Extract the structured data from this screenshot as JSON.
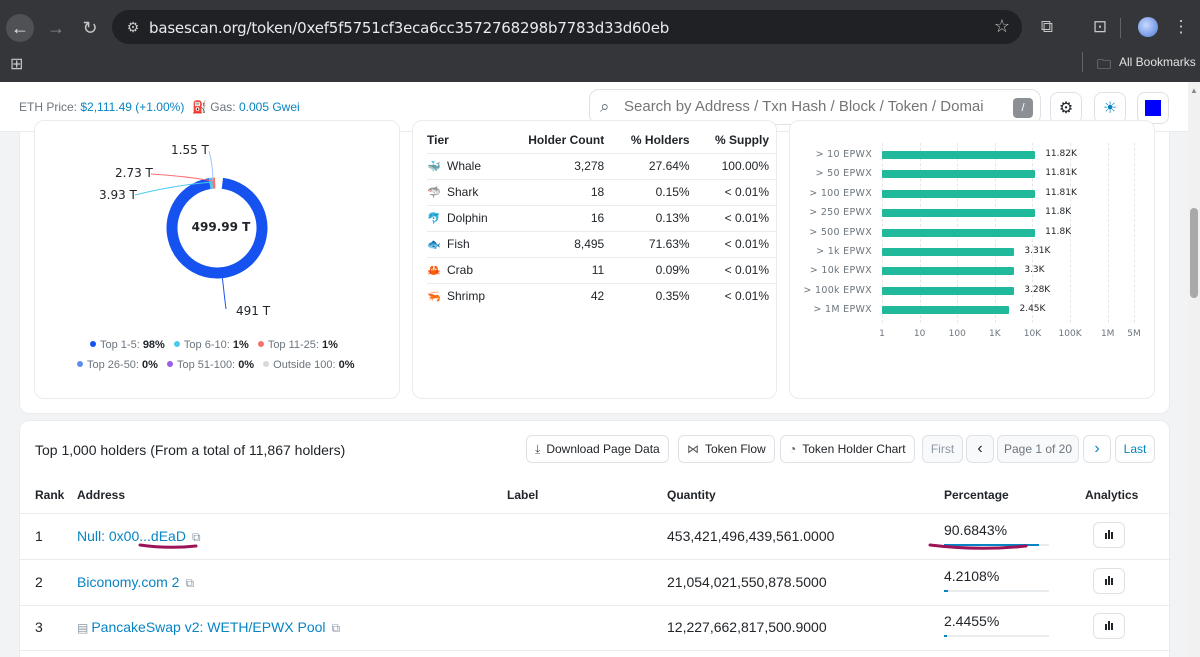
{
  "browser": {
    "url": "basescan.org/token/0xef5f5751cf3eca6cc3572768298b7783d33d60eb",
    "bookmarks_label": "All Bookmarks",
    "icons": [
      "back-arrow-icon",
      "forward-arrow-icon",
      "reload-icon",
      "site-settings-icon",
      "bookmark-star-icon",
      "extensions-icon",
      "tab-search-icon",
      "profile-avatar",
      "apps-grid-icon",
      "folder-icon"
    ]
  },
  "header": {
    "eth_price_label": "ETH Price:",
    "eth_price_value": "$2,111.49 (+1.00%)",
    "gas_label": "Gas:",
    "gas_value": "0.005 Gwei",
    "search_placeholder": "Search by Address / Txn Hash / Block / Token / Domai",
    "search_shortcut": "/",
    "accent_color": "#0784c3"
  },
  "distribution": {
    "center_label": "499.99 T",
    "callouts": [
      "1.55 T",
      "2.73 T",
      "3.93 T",
      "491 T"
    ],
    "legend": [
      {
        "label": "Top 1-5:",
        "value": "98%",
        "color": "#1652f0"
      },
      {
        "label": "Top 6-10:",
        "value": "1%",
        "color": "#4cc9f0"
      },
      {
        "label": "Top 11-25:",
        "value": "1%",
        "color": "#f87171"
      },
      {
        "label": "Top 26-50:",
        "value": "0%",
        "color": "#5b8def"
      },
      {
        "label": "Top 51-100:",
        "value": "0%",
        "color": "#9b5de5"
      },
      {
        "label": "Outside 100:",
        "value": "0%",
        "color": "#d9d9d9"
      }
    ]
  },
  "tiers": {
    "headers": [
      "Tier",
      "Holder Count",
      "% Holders",
      "% Supply"
    ],
    "rows": [
      {
        "icon": "whale-icon",
        "glyph": "🐳",
        "tier": "Whale",
        "count": "3,278",
        "holders": "27.64%",
        "supply": "100.00%"
      },
      {
        "icon": "shark-icon",
        "glyph": "🦈",
        "tier": "Shark",
        "count": "18",
        "holders": "0.15%",
        "supply": "< 0.01%"
      },
      {
        "icon": "dolphin-icon",
        "glyph": "🐬",
        "tier": "Dolphin",
        "count": "16",
        "holders": "0.13%",
        "supply": "< 0.01%"
      },
      {
        "icon": "fish-icon",
        "glyph": "🐟",
        "tier": "Fish",
        "count": "8,495",
        "holders": "71.63%",
        "supply": "< 0.01%"
      },
      {
        "icon": "crab-icon",
        "glyph": "🦀",
        "tier": "Crab",
        "count": "11",
        "holders": "0.09%",
        "supply": "< 0.01%"
      },
      {
        "icon": "shrimp-icon",
        "glyph": "🦐",
        "tier": "Shrimp",
        "count": "42",
        "holders": "0.35%",
        "supply": "< 0.01%"
      }
    ]
  },
  "chart_data": {
    "type": "bar",
    "orientation": "horizontal",
    "x_scale": "log",
    "bar_color": "#21b99b",
    "categories": [
      "> 10 EPWX",
      "> 50 EPWX",
      "> 100 EPWX",
      "> 250 EPWX",
      "> 500 EPWX",
      "> 1k EPWX",
      "> 10k EPWX",
      "> 100k EPWX",
      "> 1M EPWX"
    ],
    "values": [
      11820,
      11810,
      11810,
      11800,
      11800,
      3310,
      3300,
      3280,
      2450
    ],
    "value_labels": [
      "11.82K",
      "11.81K",
      "11.81K",
      "11.8K",
      "11.8K",
      "3.31K",
      "3.3K",
      "3.28K",
      "2.45K"
    ],
    "x_ticks": [
      {
        "label": "1",
        "value": 1
      },
      {
        "label": "10",
        "value": 10
      },
      {
        "label": "100",
        "value": 100
      },
      {
        "label": "1K",
        "value": 1000
      },
      {
        "label": "10K",
        "value": 10000
      },
      {
        "label": "100K",
        "value": 100000
      },
      {
        "label": "1M",
        "value": 1000000
      },
      {
        "label": "5M",
        "value": 5000000
      }
    ],
    "grid": true
  },
  "holders": {
    "title": "Top 1,000 holders (From a total of 11,867 holders)",
    "buttons": {
      "download": "Download Page Data",
      "token_flow": "Token Flow",
      "holder_chart": "Token Holder Chart"
    },
    "pagination": {
      "first": "First",
      "prev": "‹",
      "page": "Page 1 of 20",
      "next": "›",
      "last": "Last"
    },
    "columns": [
      "Rank",
      "Address",
      "Label",
      "Quantity",
      "Percentage",
      "Analytics"
    ],
    "rows": [
      {
        "rank": "1",
        "address": "Null: 0x00...dEaD",
        "has_doc_icon": false,
        "label": "",
        "quantity": "453,421,496,439,561.0000",
        "percentage": "90.6843%",
        "pct_fraction": 0.906843
      },
      {
        "rank": "2",
        "address": "Biconomy.com 2",
        "has_doc_icon": false,
        "label": "",
        "quantity": "21,054,021,550,878.5000",
        "percentage": "4.2108%",
        "pct_fraction": 0.042108
      },
      {
        "rank": "3",
        "address": "PancakeSwap v2: WETH/EPWX Pool",
        "has_doc_icon": true,
        "label": "",
        "quantity": "12,227,662,817,500.9000",
        "percentage": "2.4455%",
        "pct_fraction": 0.024455
      }
    ],
    "annotation_color": "#9c1457"
  }
}
